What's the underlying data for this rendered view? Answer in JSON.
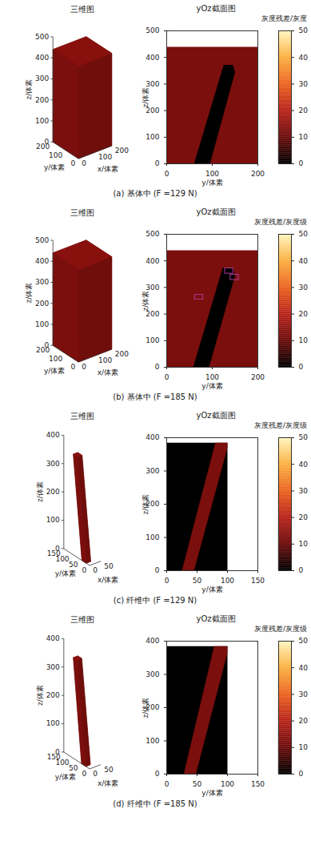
{
  "chart_data": [
    {
      "type": "volume_section",
      "caption": "(a) 基体中 (F =129 N)",
      "view3d": {
        "title": "三维图",
        "xlabel": "x/体素",
        "ylabel": "y/体素",
        "zlabel": "z/体素",
        "xlim": [
          0,
          200
        ],
        "ylim": [
          0,
          200
        ],
        "zlim": [
          0,
          500
        ],
        "xticks": [
          0,
          100,
          200
        ],
        "yticks": [
          0,
          100,
          200
        ],
        "zticks": [
          0,
          100,
          200,
          300,
          400,
          500
        ],
        "solid": {
          "x": [
            0,
            200
          ],
          "y": [
            0,
            200,
            200,
            0
          ],
          "z": [
            0,
            0,
            440,
            440
          ],
          "value": 12
        }
      },
      "section": {
        "title": "yOz截面图",
        "xlabel": "y/体素",
        "ylabel": "z/体素",
        "xlim": [
          0,
          200
        ],
        "ylim": [
          0,
          500
        ],
        "xticks": [
          0,
          100,
          200
        ],
        "yticks": [
          0,
          100,
          200,
          300,
          400,
          500
        ],
        "regions": [
          {
            "value": 12,
            "y": [
              0,
              200,
              200,
              0
            ],
            "z": [
              0,
              0,
              440,
              440
            ]
          },
          {
            "value": 0,
            "y": [
              60,
              95,
              150,
              145,
              125
            ],
            "z": [
              0,
              0,
              345,
              372,
              372
            ]
          }
        ]
      },
      "colorbar": {
        "label": "灰度残差/灰度",
        "lim": [
          0,
          50
        ],
        "ticks": [
          0,
          10,
          20,
          30,
          40,
          50
        ],
        "colors": [
          "#000000",
          "#6b0a0a",
          "#b8231a",
          "#ec6420",
          "#fbb040",
          "#fff6c0"
        ]
      }
    },
    {
      "type": "volume_section",
      "caption": "(b) 基体中 (F =185 N)",
      "view3d": {
        "title": "三维图",
        "xlabel": "x/体素",
        "ylabel": "y/体素",
        "zlabel": "z/体素",
        "xlim": [
          0,
          200
        ],
        "ylim": [
          0,
          200
        ],
        "zlim": [
          0,
          500
        ],
        "xticks": [
          0,
          100,
          200
        ],
        "yticks": [
          0,
          100,
          200
        ],
        "zticks": [
          0,
          100,
          200,
          300,
          400,
          500
        ],
        "solid": {
          "x": [
            0,
            200
          ],
          "y": [
            0,
            200,
            200,
            0
          ],
          "z": [
            0,
            0,
            440,
            440
          ],
          "value": 12
        }
      },
      "section": {
        "title": "yOz截面图",
        "xlabel": "y/体素",
        "ylabel": "z/体素",
        "xlim": [
          0,
          200
        ],
        "ylim": [
          0,
          500
        ],
        "xticks": [
          0,
          100,
          200
        ],
        "yticks": [
          0,
          100,
          200,
          300,
          400,
          500
        ],
        "regions": [
          {
            "value": 12,
            "y": [
              0,
              200,
              200,
              0
            ],
            "z": [
              0,
              0,
              440,
              440
            ]
          },
          {
            "value": 0,
            "y": [
              58,
              93,
              150,
              145,
              123
            ],
            "z": [
              0,
              0,
              345,
              375,
              375
            ]
          }
        ],
        "boxes": [
          {
            "y": [
              140,
              158
            ],
            "z": [
              328,
              348
            ],
            "color": "#b03a9a"
          },
          {
            "y": [
              128,
              146
            ],
            "z": [
              352,
              372
            ],
            "color": "#b03a9a"
          },
          {
            "y": [
              62,
              80
            ],
            "z": [
              255,
              272
            ],
            "color": "#b03a9a"
          }
        ]
      },
      "colorbar": {
        "label": "灰度残差/灰度级",
        "lim": [
          0,
          50
        ],
        "ticks": [
          0,
          10,
          20,
          30,
          40,
          50
        ],
        "colors": [
          "#000000",
          "#6b0a0a",
          "#b8231a",
          "#ec6420",
          "#fbb040",
          "#fff6c0"
        ]
      }
    },
    {
      "type": "volume_section",
      "caption": "(c) 纤维中 (F =129 N)",
      "view3d": {
        "title": "三维图",
        "xlabel": "x/体素",
        "ylabel": "y/体素",
        "zlabel": "z/体素",
        "xlim": [
          0,
          50
        ],
        "ylim": [
          0,
          150
        ],
        "zlim": [
          0,
          400
        ],
        "xticks": [
          0,
          50
        ],
        "yticks": [
          0,
          50,
          100,
          150
        ],
        "zticks": [
          0,
          100,
          200,
          300,
          400
        ],
        "solid": {
          "x": [
            0,
            20
          ],
          "y": [
            20,
            45,
            95,
            70
          ],
          "z": [
            0,
            0,
            355,
            355
          ],
          "value": 12
        }
      },
      "section": {
        "title": "yOz截面图",
        "xlabel": "y/体素",
        "ylabel": "z/体素",
        "xlim": [
          0,
          150
        ],
        "ylim": [
          0,
          400
        ],
        "xticks": [
          0,
          50,
          100,
          150
        ],
        "yticks": [
          0,
          100,
          200,
          300,
          400
        ],
        "regions": [
          {
            "value": 0,
            "y": [
              0,
              100,
              100,
              0
            ],
            "z": [
              0,
              0,
              385,
              385
            ]
          },
          {
            "value": 12,
            "y": [
              25,
              45,
              100,
              100,
              80
            ],
            "z": [
              0,
              0,
              370,
              385,
              385
            ]
          }
        ]
      },
      "colorbar": {
        "label": "灰度残差/灰度级",
        "lim": [
          0,
          50
        ],
        "ticks": [
          0,
          10,
          20,
          30,
          40,
          50
        ],
        "colors": [
          "#000000",
          "#6b0a0a",
          "#b8231a",
          "#ec6420",
          "#fbb040",
          "#fff6c0"
        ]
      }
    },
    {
      "type": "volume_section",
      "caption": "(d) 纤维中 (F =185 N)",
      "view3d": {
        "title": "三维图",
        "xlabel": "x/体素",
        "ylabel": "y/体素",
        "zlabel": "z/体素",
        "xlim": [
          0,
          50
        ],
        "ylim": [
          0,
          150
        ],
        "zlim": [
          0,
          400
        ],
        "xticks": [
          0,
          50
        ],
        "yticks": [
          0,
          50,
          100,
          150
        ],
        "zticks": [
          0,
          100,
          200,
          300,
          400
        ],
        "solid": {
          "x": [
            0,
            20
          ],
          "y": [
            22,
            47,
            95,
            72
          ],
          "z": [
            0,
            0,
            355,
            355
          ],
          "value": 12
        }
      },
      "section": {
        "title": "yOz截面图",
        "xlabel": "y/体素",
        "ylabel": "z/体素",
        "xlim": [
          0,
          150
        ],
        "ylim": [
          0,
          400
        ],
        "xticks": [
          0,
          50,
          100,
          150
        ],
        "yticks": [
          0,
          100,
          200,
          300,
          400
        ],
        "regions": [
          {
            "value": 0,
            "y": [
              0,
              100,
              100,
              0
            ],
            "z": [
              0,
              0,
              385,
              385
            ]
          },
          {
            "value": 12,
            "y": [
              28,
              48,
              100,
              100,
              78
            ],
            "z": [
              0,
              0,
              365,
              385,
              385
            ]
          }
        ]
      },
      "colorbar": {
        "label": "灰度残差/灰度级",
        "lim": [
          0,
          50
        ],
        "ticks": [
          0,
          10,
          20,
          30,
          40,
          50
        ],
        "colors": [
          "#000000",
          "#6b0a0a",
          "#b8231a",
          "#ec6420",
          "#fbb040",
          "#fff6c0"
        ]
      }
    }
  ]
}
